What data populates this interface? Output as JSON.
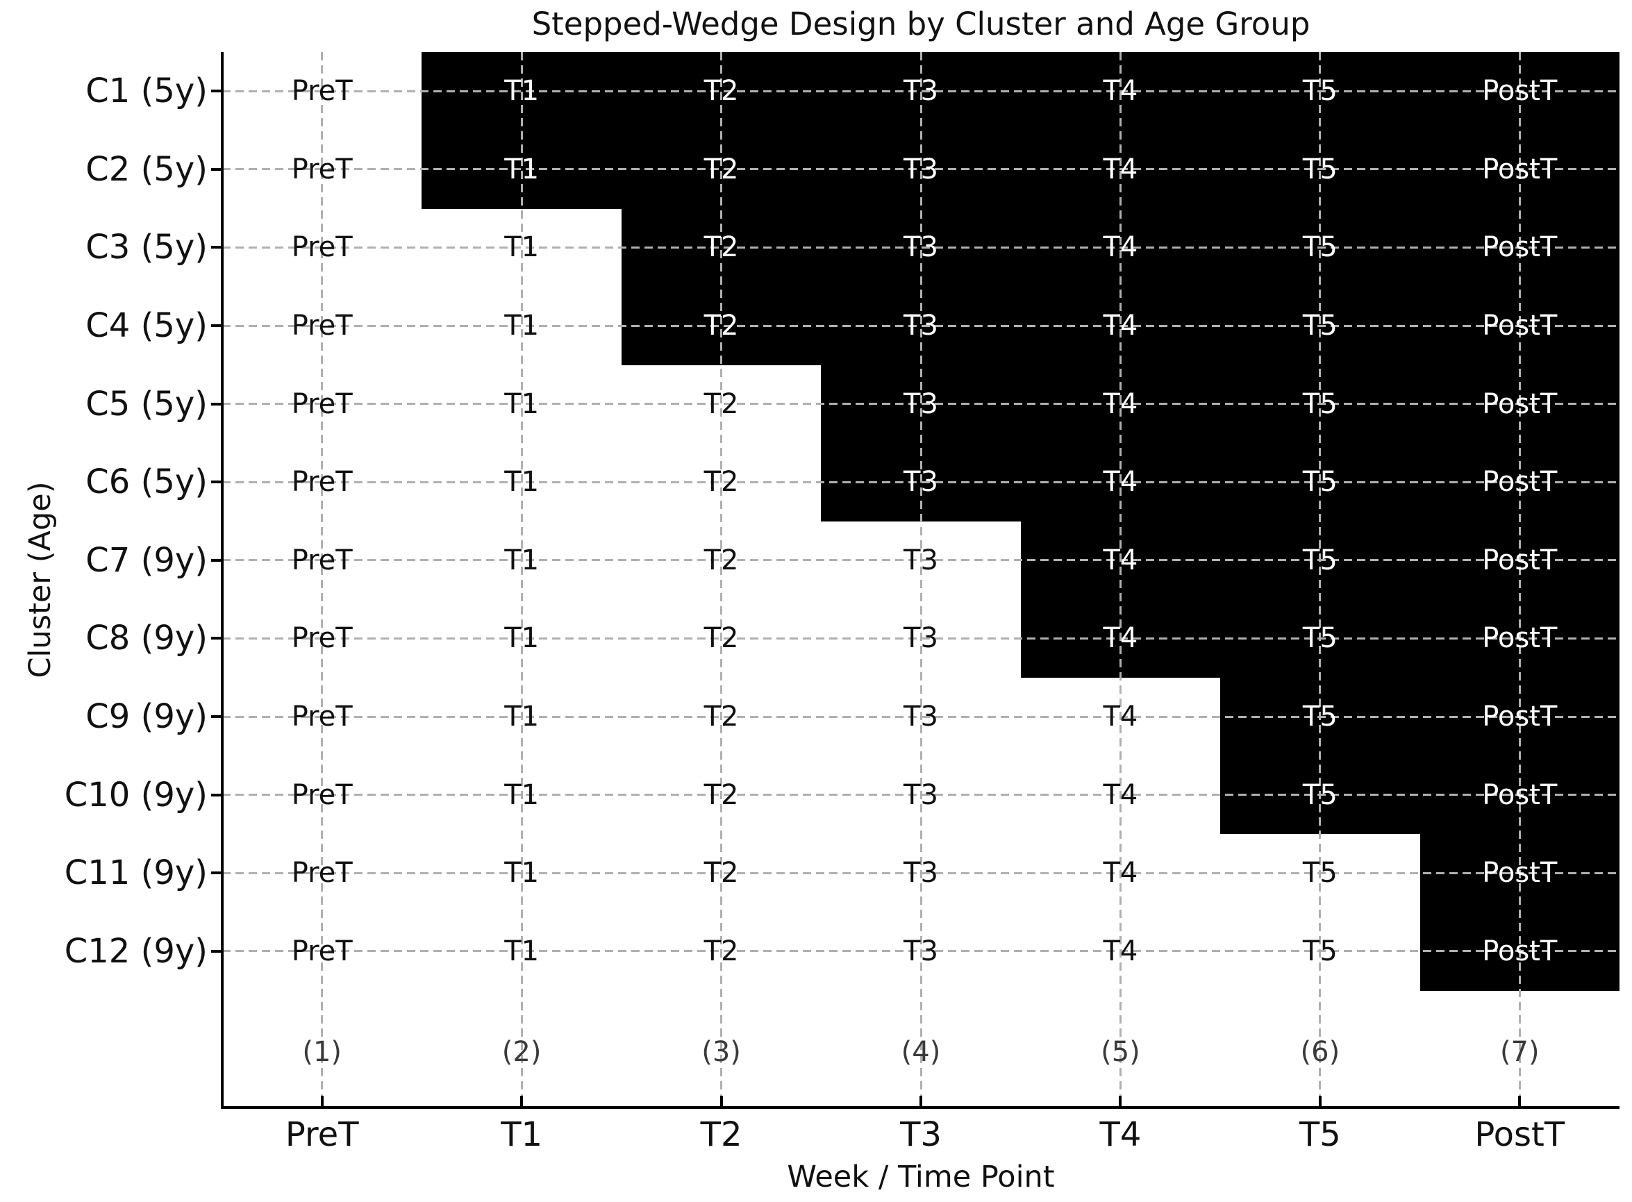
{
  "colors": {
    "intervention_fill": "#000000",
    "control_fill": "#ffffff",
    "grid": "#b0b0b0",
    "text": "#111111",
    "week_label_text": "#3a3a3a",
    "cell_text_on_intervention": "#ffffff",
    "cell_text_on_control": "#111111"
  },
  "chart_data": {
    "type": "heatmap",
    "title": "Stepped-Wedge Design by Cluster and Age Group",
    "xlabel": "Week / Time Point",
    "ylabel": "Cluster (Age)",
    "x_ticklabels": [
      "PreT",
      "T1",
      "T2",
      "T3",
      "T4",
      "T5",
      "PostT"
    ],
    "week_number_labels": [
      "(1)",
      "(2)",
      "(3)",
      "(4)",
      "(5)",
      "(6)",
      "(7)"
    ],
    "y_ticklabels": [
      "C1 (5y)",
      "C2 (5y)",
      "C3 (5y)",
      "C4 (5y)",
      "C5 (5y)",
      "C6 (5y)",
      "C7 (9y)",
      "C8 (9y)",
      "C9 (9y)",
      "C10 (9y)",
      "C11 (9y)",
      "C12 (9y)"
    ],
    "cell_labels_per_column": [
      "PreT",
      "T1",
      "T2",
      "T3",
      "T4",
      "T5",
      "PostT"
    ],
    "intervention_matrix": [
      [
        0,
        1,
        1,
        1,
        1,
        1,
        1
      ],
      [
        0,
        1,
        1,
        1,
        1,
        1,
        1
      ],
      [
        0,
        0,
        1,
        1,
        1,
        1,
        1
      ],
      [
        0,
        0,
        1,
        1,
        1,
        1,
        1
      ],
      [
        0,
        0,
        0,
        1,
        1,
        1,
        1
      ],
      [
        0,
        0,
        0,
        1,
        1,
        1,
        1
      ],
      [
        0,
        0,
        0,
        0,
        1,
        1,
        1
      ],
      [
        0,
        0,
        0,
        0,
        1,
        1,
        1
      ],
      [
        0,
        0,
        0,
        0,
        0,
        1,
        1
      ],
      [
        0,
        0,
        0,
        0,
        0,
        1,
        1
      ],
      [
        0,
        0,
        0,
        0,
        0,
        0,
        1
      ],
      [
        0,
        0,
        0,
        0,
        0,
        0,
        1
      ]
    ],
    "intervention_start_column": [
      "T1",
      "T1",
      "T2",
      "T2",
      "T3",
      "T3",
      "T4",
      "T4",
      "T5",
      "T5",
      "PostT",
      "PostT"
    ],
    "grid": "dashed",
    "legend": "none",
    "axis_style": {
      "top_spine": false,
      "right_spine": false,
      "x_tick_direction": "in",
      "y_tick_direction": "out"
    }
  }
}
